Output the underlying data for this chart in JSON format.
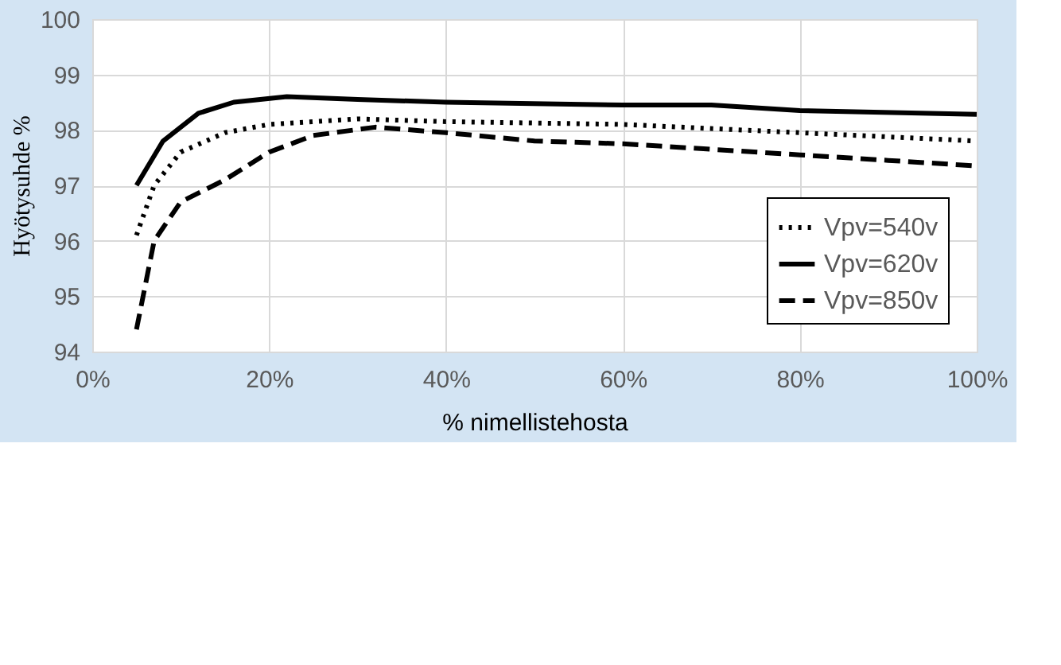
{
  "chart_data": {
    "type": "line",
    "xlabel": "% nimellistehosta",
    "ylabel": "Hyötysuhde %",
    "xlim": [
      0,
      100
    ],
    "xticks": [
      {
        "value": 0,
        "label": "0%"
      },
      {
        "value": 20,
        "label": "20%"
      },
      {
        "value": 40,
        "label": "40%"
      },
      {
        "value": 60,
        "label": "60%"
      },
      {
        "value": 80,
        "label": "80%"
      },
      {
        "value": 100,
        "label": "100%"
      }
    ],
    "ylim": [
      94,
      100
    ],
    "yticks": [
      94,
      95,
      96,
      97,
      98,
      99,
      100
    ],
    "grid": true,
    "legend": "bottom right",
    "series": [
      {
        "name": "Vpv=540v",
        "color": "#000000",
        "line_style": "dotted",
        "x": [
          5,
          7,
          10,
          15,
          20,
          30,
          40,
          60,
          80,
          100
        ],
        "values": [
          96.1,
          97.0,
          97.6,
          97.95,
          98.1,
          98.2,
          98.15,
          98.1,
          97.95,
          97.8
        ]
      },
      {
        "name": "Vpv=620v",
        "color": "#000000",
        "line_style": "solid",
        "x": [
          5,
          8,
          12,
          16,
          22,
          30,
          40,
          60,
          70,
          80,
          100
        ],
        "values": [
          97.0,
          97.8,
          98.3,
          98.5,
          98.6,
          98.55,
          98.5,
          98.45,
          98.45,
          98.35,
          98.28
        ]
      },
      {
        "name": "Vpv=850v",
        "color": "#000000",
        "line_style": "dashed",
        "x": [
          5,
          7,
          10,
          15,
          20,
          25,
          32,
          40,
          50,
          60,
          70,
          80,
          90,
          100
        ],
        "values": [
          94.4,
          96.0,
          96.7,
          97.1,
          97.6,
          97.9,
          98.05,
          97.95,
          97.8,
          97.75,
          97.65,
          97.55,
          97.45,
          97.35
        ]
      }
    ]
  }
}
